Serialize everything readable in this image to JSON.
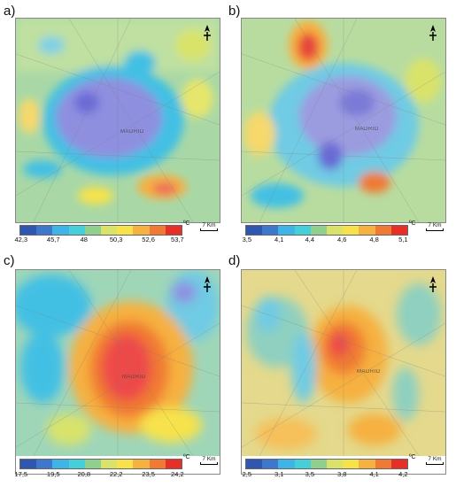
{
  "panels": [
    {
      "letter": "a)",
      "unit": "ºC",
      "scale_label": "7 Km",
      "city_label": "MADRID",
      "ticks": [
        "42,3",
        "45,7",
        "48",
        "50,3",
        "52,6",
        "53,7"
      ],
      "colorbar": [
        "#2f57b0",
        "#3d78cc",
        "#3fb4e6",
        "#45cfd9",
        "#8fd08e",
        "#d9e36a",
        "#f7e24b",
        "#f6b140",
        "#f07a33",
        "#e63027"
      ]
    },
    {
      "letter": "b)",
      "unit": "ºC",
      "scale_label": "7 Km",
      "city_label": "MADRID",
      "ticks": [
        "3,5",
        "4,1",
        "4,4",
        "4,6",
        "4,8",
        "5,1"
      ],
      "colorbar": [
        "#2f57b0",
        "#3d78cc",
        "#3fb4e6",
        "#45cfd9",
        "#8fd08e",
        "#d9e36a",
        "#f7e24b",
        "#f6b140",
        "#f07a33",
        "#e63027"
      ]
    },
    {
      "letter": "c)",
      "unit": "ºC",
      "scale_label": "7 Km",
      "city_label": "MADRID",
      "ticks": [
        "17,5",
        "19,5",
        "20,8",
        "22,2",
        "23,5",
        "24,2"
      ],
      "colorbar": [
        "#2f57b0",
        "#3d78cc",
        "#3fb4e6",
        "#45cfd9",
        "#8fd08e",
        "#d9e36a",
        "#f7e24b",
        "#f6b140",
        "#f07a33",
        "#e63027"
      ]
    },
    {
      "letter": "d)",
      "unit": "ºC",
      "scale_label": "7 Km",
      "city_label": "MADRID",
      "ticks": [
        "2,5",
        "3,1",
        "3,5",
        "3,8",
        "4,1",
        "4,2"
      ],
      "colorbar": [
        "#2f57b0",
        "#3d78cc",
        "#3fb4e6",
        "#45cfd9",
        "#8fd08e",
        "#d9e36a",
        "#f7e24b",
        "#f6b140",
        "#f07a33",
        "#e63027"
      ]
    }
  ]
}
